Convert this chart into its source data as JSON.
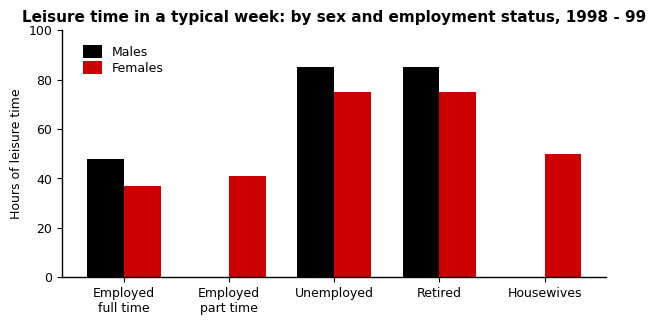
{
  "title": "Leisure time in a typical week: by sex and employment status, 1998 - 99",
  "categories": [
    "Employed\nfull time",
    "Employed\npart time",
    "Unemployed",
    "Retired",
    "Housewives"
  ],
  "males": [
    48,
    0,
    85,
    85,
    0
  ],
  "females": [
    37,
    41,
    75,
    75,
    50
  ],
  "male_color": "#000000",
  "female_color": "#cc0000",
  "ylabel": "Hours of leisure time",
  "ylim": [
    0,
    100
  ],
  "yticks": [
    0,
    20,
    40,
    60,
    80,
    100
  ],
  "legend_labels": [
    "Males",
    "Females"
  ],
  "bar_width": 0.35,
  "title_fontsize": 11,
  "label_fontsize": 9,
  "tick_fontsize": 9,
  "background_color": "#ffffff"
}
